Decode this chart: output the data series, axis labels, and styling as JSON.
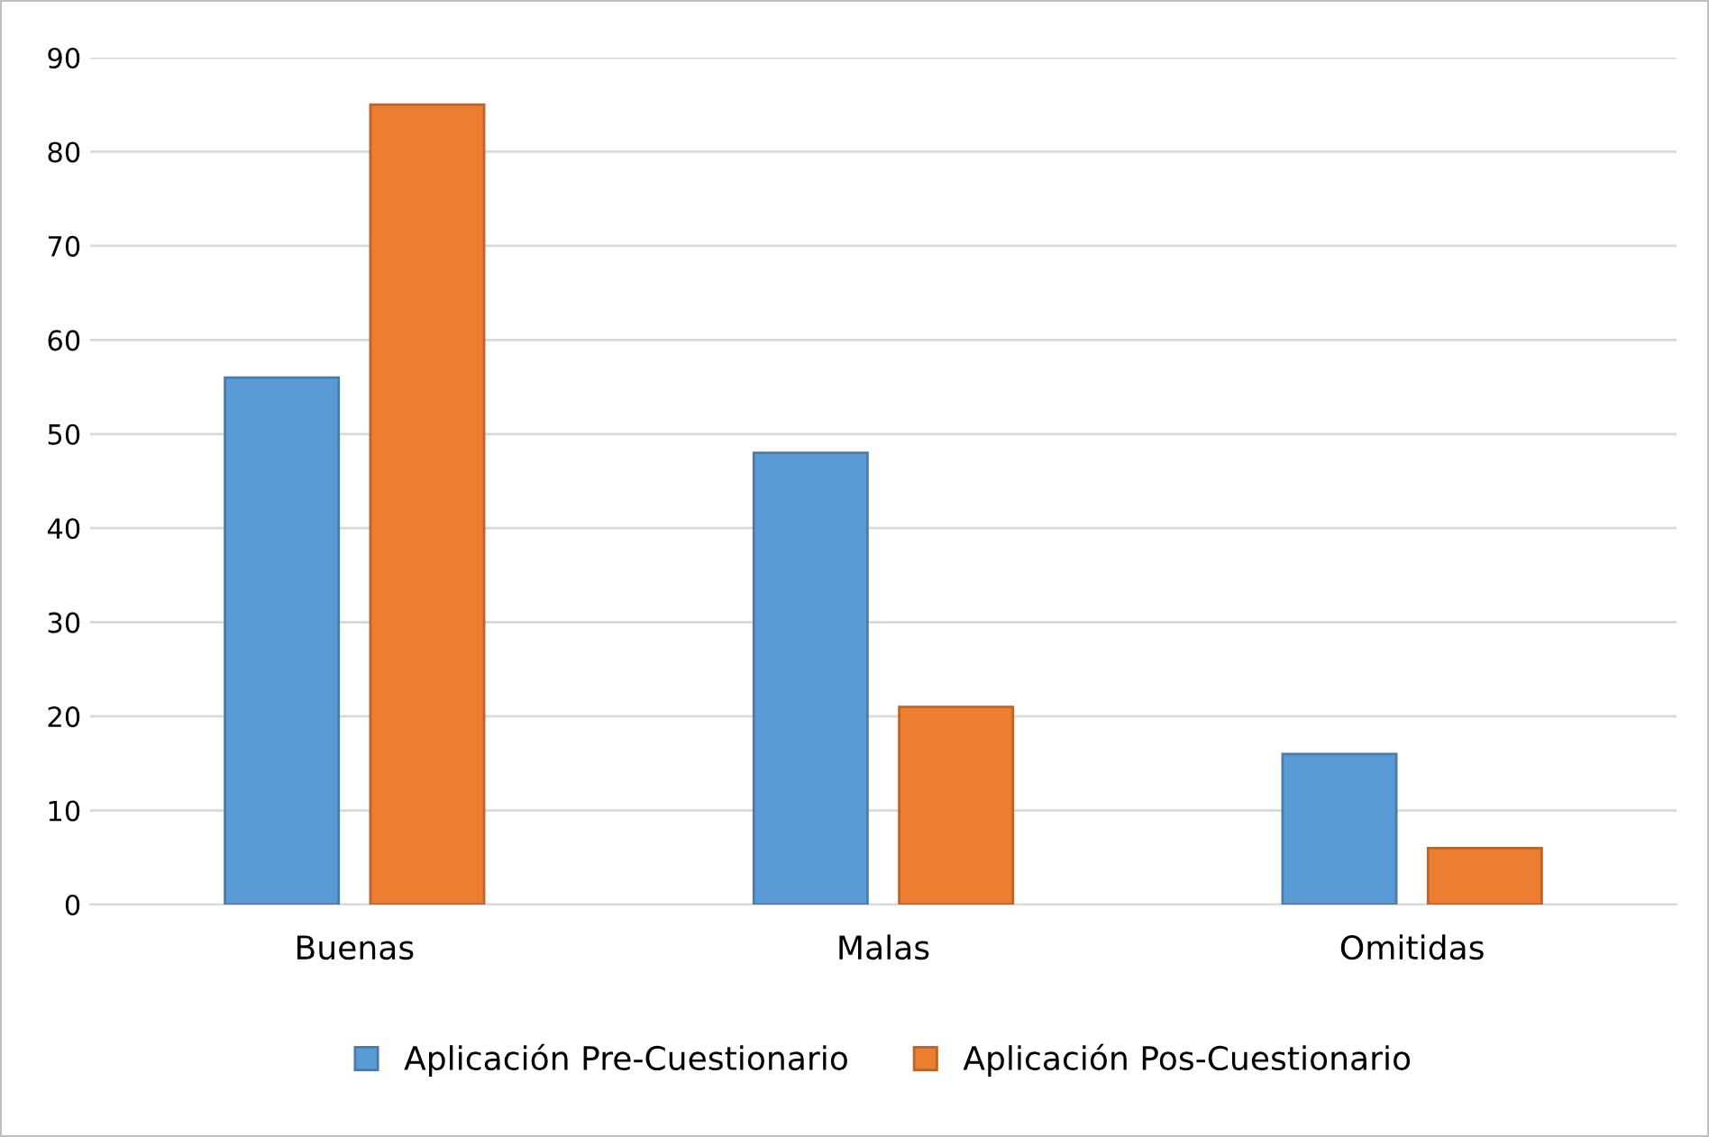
{
  "chart_data": {
    "type": "bar",
    "categories": [
      "Buenas",
      "Malas",
      "Omitidas"
    ],
    "series": [
      {
        "name": "Aplicación Pre-Cuestionario",
        "color": "#5b9bd5",
        "values": [
          56,
          48,
          16
        ]
      },
      {
        "name": "Aplicación Pos-Cuestionario",
        "color": "#ed7d31",
        "values": [
          85,
          21,
          6
        ]
      }
    ],
    "ylim": [
      0,
      90
    ],
    "yticks": [
      0,
      10,
      20,
      30,
      40,
      50,
      60,
      70,
      80,
      90
    ],
    "grid": "y",
    "legend": "bottom"
  }
}
